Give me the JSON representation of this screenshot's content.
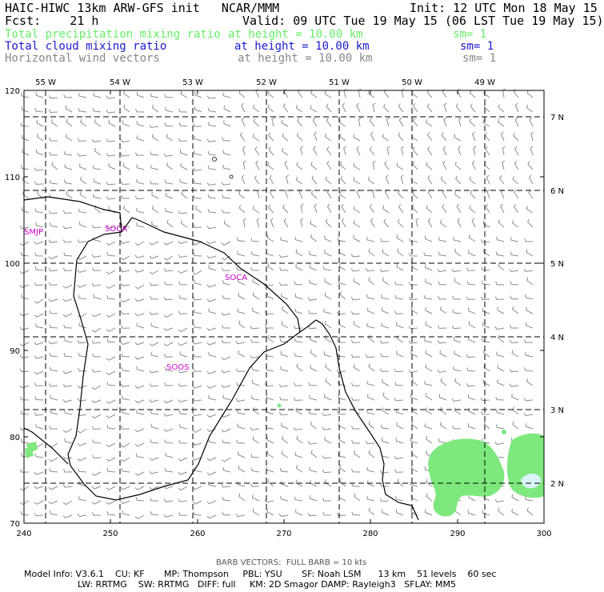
{
  "header": {
    "model_title": "HAIC-HIWC 13km ARW-GFS init   NCAR/MMM",
    "init": "Init: 12 UTC Mon 18 May 15",
    "fcst": "Fcst:    21 h",
    "valid": "Valid: 09 UTC Tue 19 May 15 (06 LST Tue 19 May 15)",
    "fields": [
      {
        "name": "Total precipitation mixing ratio",
        "level": "at height = 10.00 km",
        "sm": "sm= 1",
        "color": "#66ee66"
      },
      {
        "name": "Total cloud mixing ratio",
        "level": "at height = 10.00 km",
        "sm": "sm= 1",
        "color": "#1a1acc"
      },
      {
        "name": "Horizontal wind vectors",
        "level": "at height = 10.00 km",
        "sm": "sm= 1",
        "color": "#888888"
      }
    ]
  },
  "map": {
    "x_ticks": [
      "240",
      "250",
      "260",
      "270",
      "280",
      "290",
      "300"
    ],
    "y_ticks": [
      "70",
      "80",
      "90",
      "100",
      "110",
      "120"
    ],
    "lon_labels": [
      "55 W",
      "54 W",
      "53 W",
      "52 W",
      "51 W",
      "50 W",
      "49 W"
    ],
    "lat_labels": [
      "7 N",
      "6 N",
      "5 N",
      "4 N",
      "3 N",
      "2 N"
    ],
    "stations": [
      "SMJP",
      "SOCA",
      "SOCA",
      "SOOS"
    ],
    "colors": {
      "precip": "#7ee87e",
      "cloud": "#d8f4f8",
      "labels": "#cc00cc",
      "barbs": "#888888"
    }
  },
  "footer": {
    "barb_note": "BARB VECTORS:  FULL BARB = 10 kts",
    "line1": "Model Info: V3.6.1    CU: KF       MP: Thompson     PBL: YSU       SF: Noah LSM      13 km    51 levels    60 sec",
    "line2": "LW: RRTMG    SW: RRTMG   DIFF: full     KM: 2D Smagor DAMP: Rayleigh3   SFLAY: MM5"
  }
}
